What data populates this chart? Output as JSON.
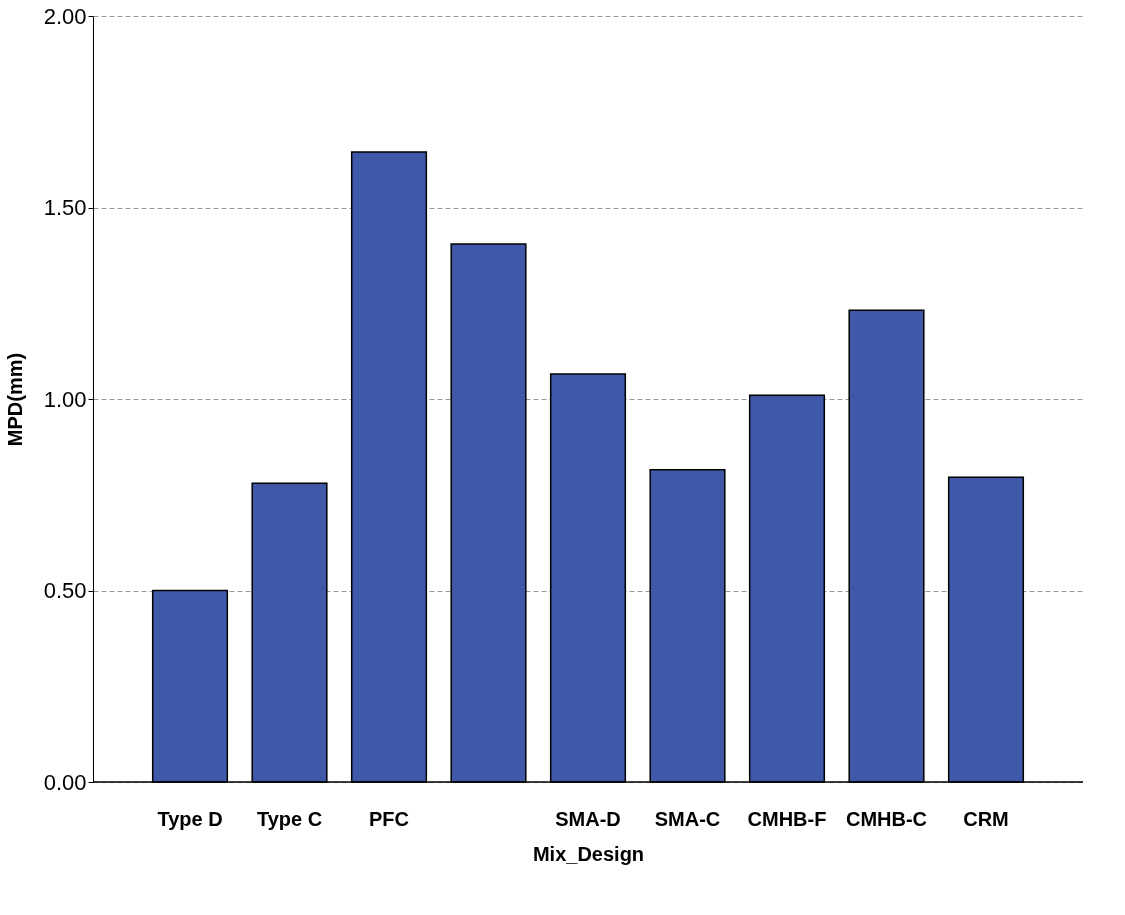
{
  "chart_data": {
    "type": "bar",
    "xlabel": "Mix_Design",
    "ylabel": "MPD(mm)",
    "categories": [
      "Type D",
      "Type C",
      "PFC",
      null,
      "SMA-D",
      "SMA-C",
      "CMHB-F",
      "CMHB-C",
      "CRM"
    ],
    "values": [
      0.5,
      0.78,
      1.645,
      1.405,
      1.065,
      0.815,
      1.01,
      1.232,
      0.796
    ],
    "color": "#3f58a8",
    "ylim": [
      0,
      2
    ],
    "yticks": [
      {
        "value": 0,
        "label": "0.00"
      },
      {
        "value": 0.5,
        "label": "0.50"
      },
      {
        "value": 1,
        "label": "1.00"
      },
      {
        "value": 1.5,
        "label": "1.50"
      },
      {
        "value": 2,
        "label": "2.00"
      }
    ],
    "grid": "y"
  }
}
